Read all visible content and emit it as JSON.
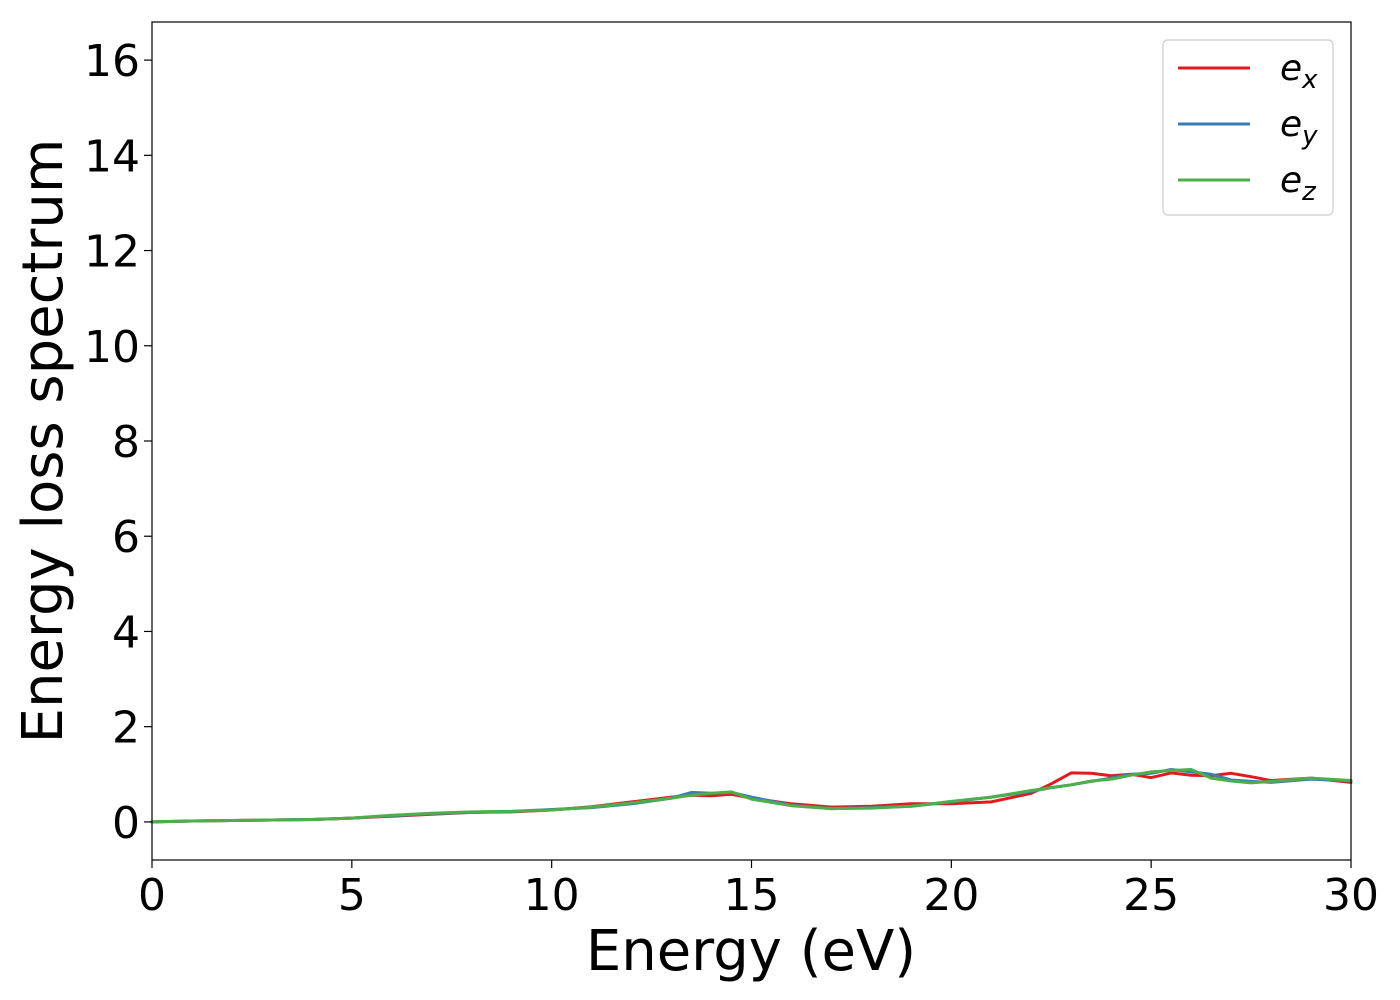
{
  "chart_data": {
    "type": "line",
    "xlabel": "Energy (eV)",
    "ylabel": "Energy loss spectrum",
    "xlim": [
      0,
      30
    ],
    "ylim": [
      -0.8,
      16.8
    ],
    "xticks": [
      0,
      5,
      10,
      15,
      20,
      25,
      30
    ],
    "yticks": [
      0,
      2,
      4,
      6,
      8,
      10,
      12,
      14,
      16
    ],
    "grid": false,
    "legend_position": "top-right",
    "x": [
      0,
      1,
      2,
      3,
      4,
      5,
      6,
      7,
      8,
      9,
      10,
      11,
      12,
      13,
      13.5,
      14,
      14.5,
      15,
      16,
      17,
      18,
      19,
      20,
      21,
      22,
      22.5,
      23,
      23.5,
      24,
      24.5,
      25,
      25.5,
      26,
      26.5,
      27,
      27.5,
      28,
      29,
      30
    ],
    "series": [
      {
        "base": "e",
        "sub": "x",
        "color": "#e31a1c",
        "values": [
          0.0,
          0.02,
          0.03,
          0.04,
          0.05,
          0.08,
          0.12,
          0.16,
          0.2,
          0.21,
          0.25,
          0.32,
          0.42,
          0.52,
          0.56,
          0.55,
          0.58,
          0.5,
          0.38,
          0.31,
          0.33,
          0.38,
          0.38,
          0.42,
          0.6,
          0.8,
          1.03,
          1.02,
          0.97,
          1.0,
          0.93,
          1.03,
          0.98,
          0.97,
          1.02,
          0.95,
          0.87,
          0.92,
          0.83
        ]
      },
      {
        "base": "e",
        "sub": "y",
        "color": "#377eb8",
        "values": [
          0.0,
          0.02,
          0.03,
          0.04,
          0.05,
          0.08,
          0.13,
          0.17,
          0.2,
          0.22,
          0.26,
          0.3,
          0.38,
          0.5,
          0.62,
          0.6,
          0.62,
          0.52,
          0.35,
          0.28,
          0.3,
          0.33,
          0.42,
          0.52,
          0.64,
          0.72,
          0.78,
          0.85,
          0.92,
          1.0,
          1.02,
          1.1,
          1.05,
          1.0,
          0.88,
          0.85,
          0.83,
          0.9,
          0.86
        ]
      },
      {
        "base": "e",
        "sub": "z",
        "color": "#4daf4a",
        "values": [
          0.0,
          0.02,
          0.03,
          0.04,
          0.05,
          0.08,
          0.14,
          0.18,
          0.21,
          0.22,
          0.25,
          0.31,
          0.4,
          0.5,
          0.56,
          0.6,
          0.63,
          0.48,
          0.34,
          0.28,
          0.29,
          0.33,
          0.43,
          0.52,
          0.66,
          0.72,
          0.78,
          0.86,
          0.9,
          0.98,
          1.05,
          1.08,
          1.1,
          0.92,
          0.86,
          0.82,
          0.85,
          0.92,
          0.87
        ]
      }
    ]
  }
}
